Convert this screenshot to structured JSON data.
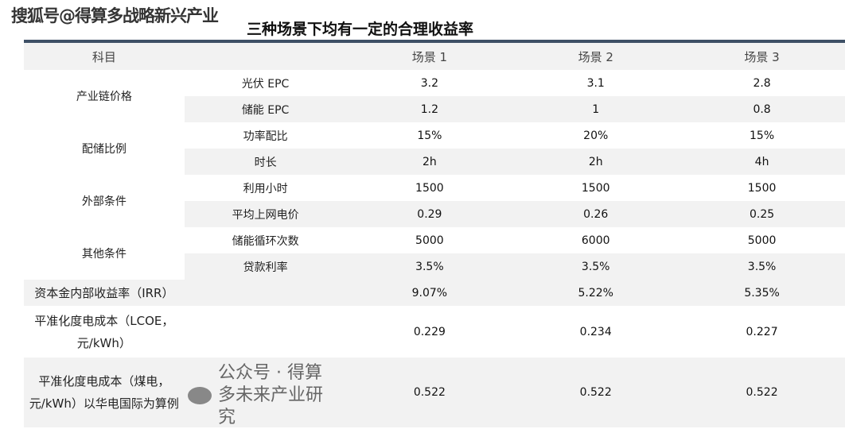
{
  "watermark": "搜狐号@得算多战略新兴产业",
  "title": "三种场景下均有一定的合理收益率",
  "header": {
    "item": "科目",
    "s1": "场景 1",
    "s2": "场景 2",
    "s3": "场景 3"
  },
  "groups": [
    {
      "name": "产业链价格",
      "rows": [
        {
          "sub": "光伏 EPC",
          "v": [
            "3.2",
            "3.1",
            "2.8"
          ]
        },
        {
          "sub": "储能 EPC",
          "v": [
            "1.2",
            "1",
            "0.8"
          ]
        }
      ]
    },
    {
      "name": "配储比例",
      "rows": [
        {
          "sub": "功率配比",
          "v": [
            "15%",
            "20%",
            "15%"
          ]
        },
        {
          "sub": "时长",
          "v": [
            "2h",
            "2h",
            "4h"
          ]
        }
      ]
    },
    {
      "name": "外部条件",
      "rows": [
        {
          "sub": "利用小时",
          "v": [
            "1500",
            "1500",
            "1500"
          ]
        },
        {
          "sub": "平均上网电价",
          "v": [
            "0.29",
            "0.26",
            "0.25"
          ]
        }
      ]
    },
    {
      "name": "其他条件",
      "rows": [
        {
          "sub": "储能循环次数",
          "v": [
            "5000",
            "6000",
            "5000"
          ]
        },
        {
          "sub": "贷款利率",
          "v": [
            "3.5%",
            "3.5%",
            "3.5%"
          ]
        }
      ]
    }
  ],
  "results": [
    {
      "name": "资本金内部收益率（IRR）",
      "v": [
        "9.07%",
        "5.22%",
        "5.35%"
      ]
    },
    {
      "name": "平准化度电成本（LCOE，元/kWh）",
      "v": [
        "0.229",
        "0.234",
        "0.227"
      ]
    },
    {
      "name": "平准化度电成本（煤电，元/kWh）以华电国际为算例",
      "v": [
        "0.522",
        "0.522",
        "0.522"
      ]
    }
  ],
  "footer_watermark": "公众号 · 得算多未来产业研究"
}
